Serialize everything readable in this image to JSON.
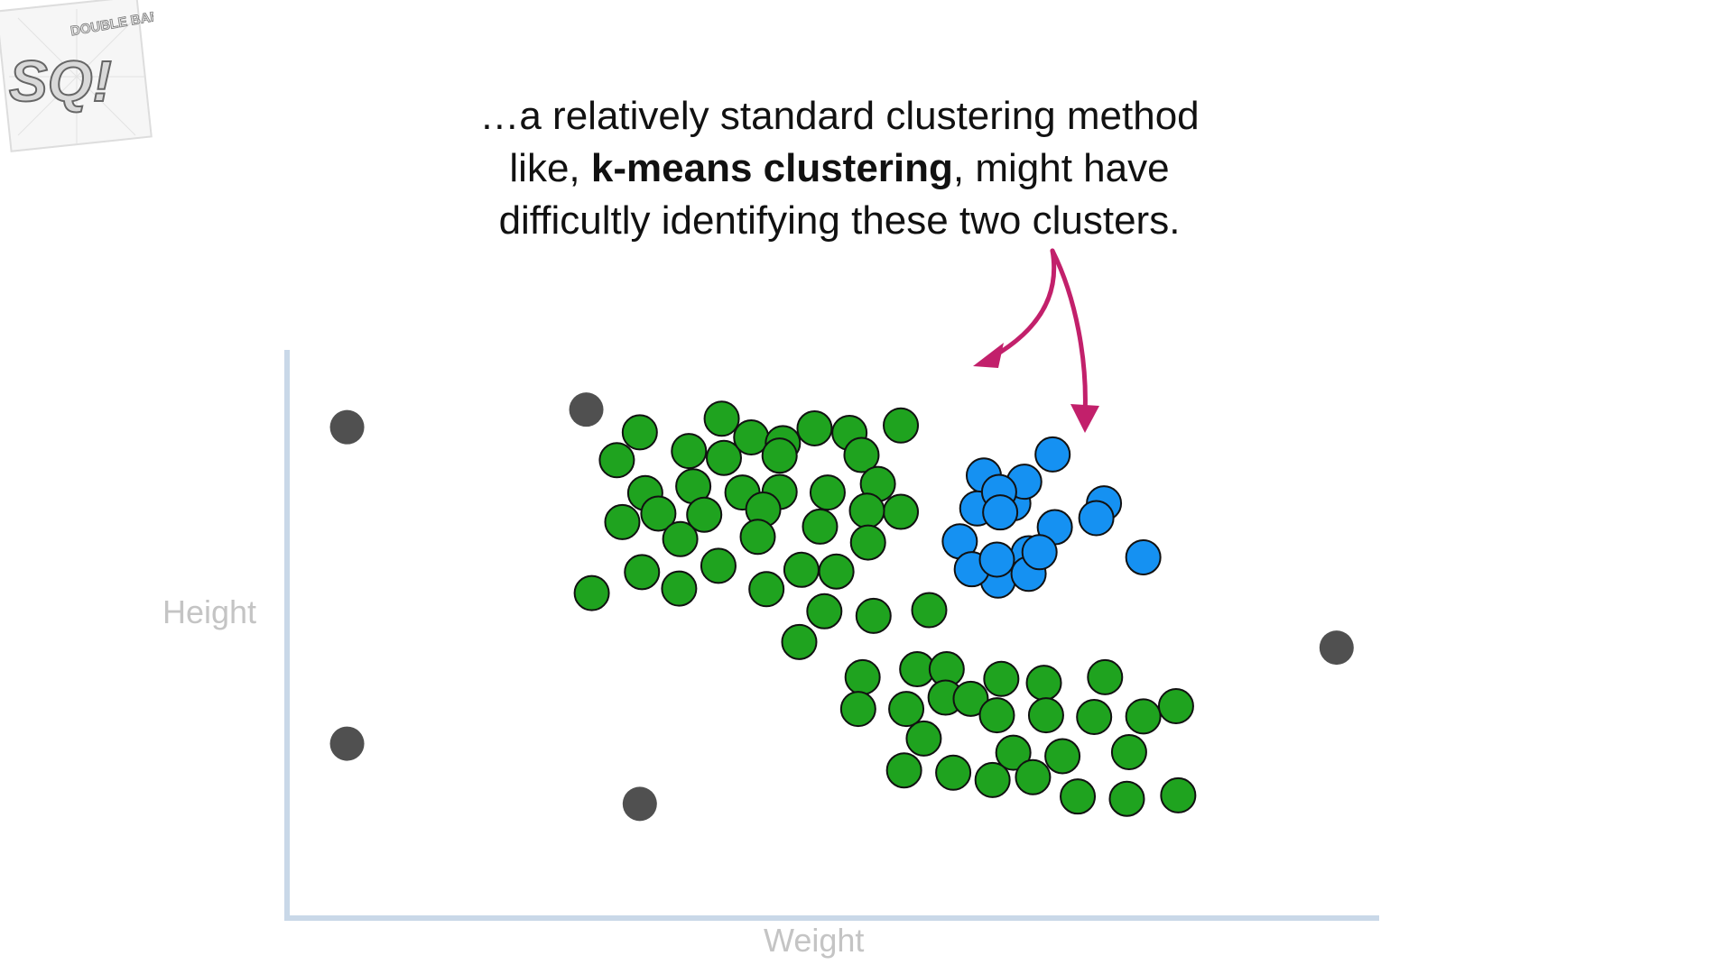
{
  "logo": {
    "text_top": "DOUBLE BAM!!!",
    "letters": "SQ!",
    "icon": "statquest-logo"
  },
  "caption": {
    "line1": "…a relatively standard clustering method",
    "line2_pre": "like, ",
    "line2_bold": "k-means clustering",
    "line2_post": ", might have",
    "line3": "difficultly identifying these two clusters."
  },
  "chart_data": {
    "type": "scatter",
    "xlabel": "Weight",
    "ylabel": "Height",
    "xlim": [
      0,
      100
    ],
    "ylim": [
      0,
      100
    ],
    "grid": false,
    "legend": "none",
    "series": [
      {
        "color": "#1fa31f",
        "points": [
          [
            32.3,
            85.5
          ],
          [
            39.8,
            87.9
          ],
          [
            30.2,
            80.6
          ],
          [
            36.8,
            82.2
          ],
          [
            40.0,
            81.0
          ],
          [
            42.5,
            84.6
          ],
          [
            45.4,
            83.6
          ],
          [
            48.3,
            86.2
          ],
          [
            45.1,
            81.4
          ],
          [
            51.5,
            85.4
          ],
          [
            52.6,
            81.5
          ],
          [
            56.2,
            86.7
          ],
          [
            32.8,
            74.8
          ],
          [
            37.2,
            76.0
          ],
          [
            41.7,
            74.9
          ],
          [
            49.5,
            74.9
          ],
          [
            45.1,
            75.0
          ],
          [
            54.1,
            76.4
          ],
          [
            56.2,
            71.5
          ],
          [
            34.0,
            71.2
          ],
          [
            38.2,
            71.0
          ],
          [
            43.6,
            71.9
          ],
          [
            48.8,
            68.9
          ],
          [
            53.1,
            71.7
          ],
          [
            30.7,
            69.7
          ],
          [
            36.0,
            66.7
          ],
          [
            43.1,
            67.1
          ],
          [
            39.5,
            62.0
          ],
          [
            47.1,
            61.3
          ],
          [
            53.2,
            66.1
          ],
          [
            32.5,
            60.9
          ],
          [
            35.9,
            58.0
          ],
          [
            43.9,
            57.9
          ],
          [
            50.3,
            61.0
          ],
          [
            27.9,
            57.2
          ],
          [
            49.2,
            54.0
          ],
          [
            53.7,
            53.2
          ],
          [
            58.8,
            54.2
          ],
          [
            46.9,
            48.6
          ],
          [
            52.7,
            42.4
          ],
          [
            57.7,
            43.8
          ],
          [
            60.4,
            43.8
          ],
          [
            65.4,
            42.1
          ],
          [
            69.3,
            41.4
          ],
          [
            74.9,
            42.4
          ],
          [
            52.3,
            36.8
          ],
          [
            56.7,
            36.8
          ],
          [
            60.3,
            38.8
          ],
          [
            62.6,
            38.6
          ],
          [
            65.0,
            35.7
          ],
          [
            69.5,
            35.7
          ],
          [
            73.9,
            35.4
          ],
          [
            78.4,
            35.5
          ],
          [
            81.4,
            37.3
          ],
          [
            58.3,
            31.6
          ],
          [
            66.5,
            29.1
          ],
          [
            71.0,
            28.5
          ],
          [
            56.5,
            26.0
          ],
          [
            61.0,
            25.6
          ],
          [
            64.6,
            24.3
          ],
          [
            68.3,
            24.8
          ],
          [
            72.4,
            21.4
          ],
          [
            76.9,
            21.0
          ],
          [
            81.6,
            21.6
          ],
          [
            77.1,
            29.2
          ]
        ]
      },
      {
        "color": "#1591f2",
        "points": [
          [
            70.1,
            81.6
          ],
          [
            66.5,
            73.0
          ],
          [
            63.8,
            77.9
          ],
          [
            74.8,
            73.0
          ],
          [
            67.5,
            76.8
          ],
          [
            61.6,
            66.3
          ],
          [
            63.2,
            72.1
          ],
          [
            65.2,
            75.0
          ],
          [
            67.9,
            64.2
          ],
          [
            70.3,
            68.8
          ],
          [
            74.1,
            70.4
          ],
          [
            78.4,
            63.5
          ],
          [
            65.1,
            59.4
          ],
          [
            65.3,
            71.4
          ],
          [
            67.9,
            60.6
          ],
          [
            62.7,
            61.4
          ],
          [
            65.0,
            63.1
          ],
          [
            68.9,
            64.4
          ]
        ]
      },
      {
        "color": "#505050",
        "points": [
          [
            5.5,
            86.4
          ],
          [
            27.4,
            89.5
          ],
          [
            5.5,
            30.7
          ],
          [
            32.3,
            20.1
          ],
          [
            96.1,
            47.6
          ]
        ]
      }
    ]
  }
}
